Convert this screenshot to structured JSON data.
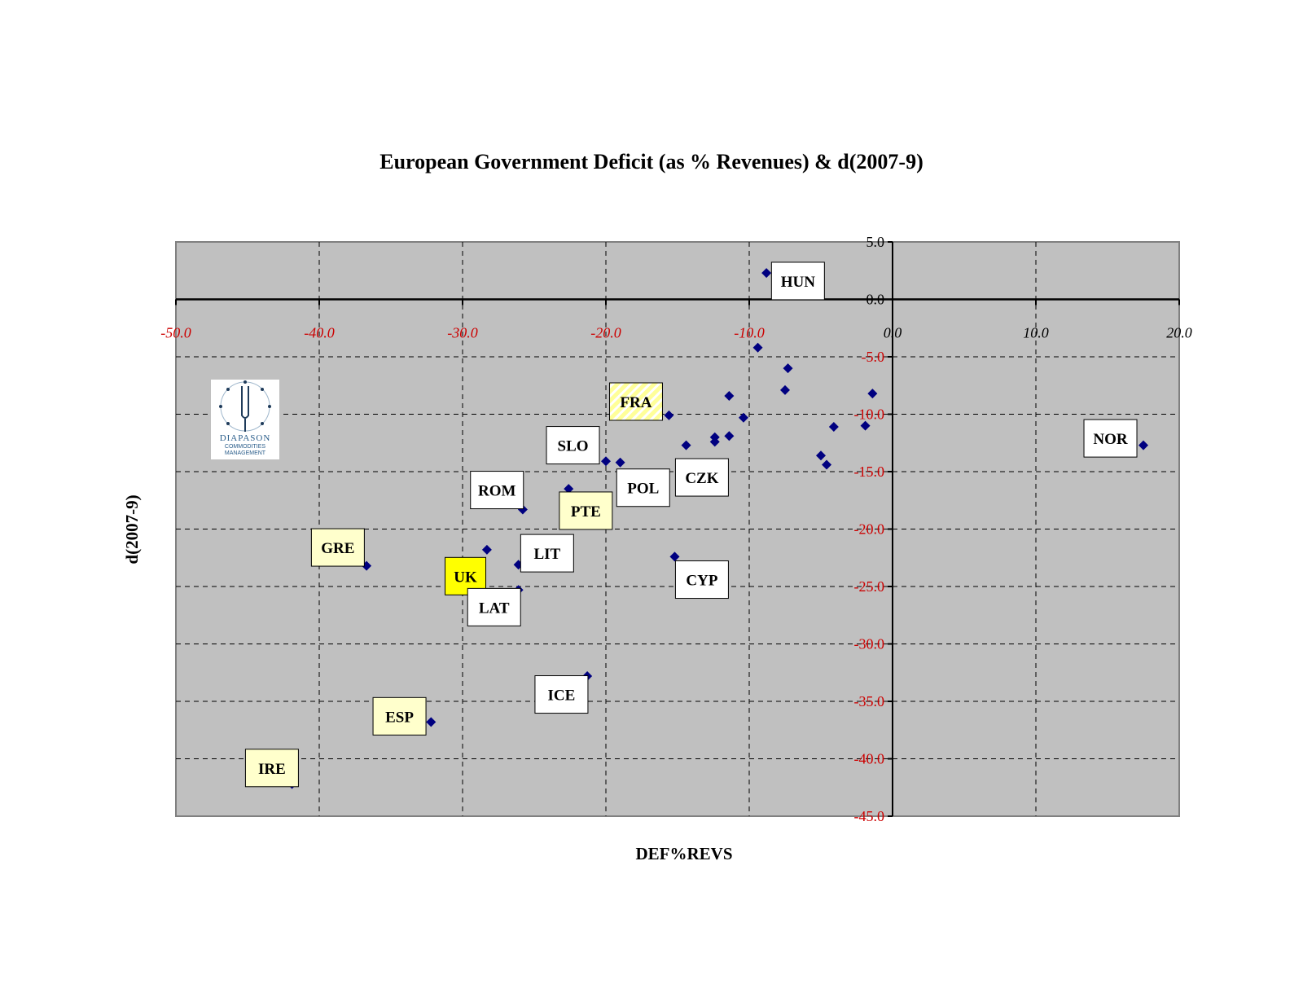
{
  "title": "European Government Deficit (as % Revenues) & d(2007-9)",
  "logo": {
    "name": "DIAPASON",
    "subtitle": "COMMODITIES MANAGEMENT"
  },
  "colors": {
    "plot_bg": "#c0c0c0",
    "point": "#000080",
    "neg_label": "#cc0000",
    "pos_label": "#000000",
    "highlight_yellow": "#ffff00",
    "pale_yellow": "#ffffcc"
  },
  "chart_data": {
    "type": "scatter",
    "xlabel": "DEF%REVS",
    "ylabel": "d(2007-9)",
    "xlim": [
      -50,
      20
    ],
    "ylim": [
      -45,
      5
    ],
    "x_ticks": [
      "-50.0",
      "-40.0",
      "-30.0",
      "-20.0",
      "-10.0",
      "0.0",
      "10.0",
      "20.0"
    ],
    "y_ticks": [
      "5.0",
      "0.0",
      "-5.0",
      "-10.0",
      "-15.0",
      "-20.0",
      "-25.0",
      "-30.0",
      "-35.0",
      "-40.0",
      "-45.0"
    ],
    "grid": true,
    "points": [
      {
        "x": -8.8,
        "y": 2.3
      },
      {
        "x": -9.4,
        "y": -4.2
      },
      {
        "x": -7.3,
        "y": -6.0
      },
      {
        "x": -7.5,
        "y": -7.9
      },
      {
        "x": -1.4,
        "y": -8.2
      },
      {
        "x": -11.4,
        "y": -8.4
      },
      {
        "x": -10.4,
        "y": -10.3
      },
      {
        "x": -15.6,
        "y": -10.1
      },
      {
        "x": -4.1,
        "y": -11.1
      },
      {
        "x": -1.9,
        "y": -11.0
      },
      {
        "x": -11.4,
        "y": -11.9
      },
      {
        "x": -12.4,
        "y": -12.0
      },
      {
        "x": -12.4,
        "y": -12.4
      },
      {
        "x": -14.4,
        "y": -12.7
      },
      {
        "x": -5.0,
        "y": -13.6
      },
      {
        "x": -4.6,
        "y": -14.4
      },
      {
        "x": -20.0,
        "y": -14.1
      },
      {
        "x": -19.0,
        "y": -14.2
      },
      {
        "x": -22.6,
        "y": -16.5
      },
      {
        "x": -25.8,
        "y": -18.3
      },
      {
        "x": -28.3,
        "y": -21.8
      },
      {
        "x": -15.2,
        "y": -22.4
      },
      {
        "x": -36.7,
        "y": -23.2
      },
      {
        "x": -26.1,
        "y": -23.1
      },
      {
        "x": -26.1,
        "y": -25.3
      },
      {
        "x": -21.3,
        "y": -32.8
      },
      {
        "x": -32.2,
        "y": -36.8
      },
      {
        "x": -41.9,
        "y": -42.2
      },
      {
        "x": 17.5,
        "y": -12.7
      }
    ],
    "annotations": [
      {
        "text": "HUN",
        "x": -6.6,
        "y": 1.6,
        "style": "white"
      },
      {
        "text": "FRA",
        "x": -17.9,
        "y": -8.9,
        "style": "hatched"
      },
      {
        "text": "SLO",
        "x": -22.3,
        "y": -12.7,
        "style": "white"
      },
      {
        "text": "NOR",
        "x": 15.2,
        "y": -12.1,
        "style": "white"
      },
      {
        "text": "CZK",
        "x": -13.3,
        "y": -15.5,
        "style": "white"
      },
      {
        "text": "POL",
        "x": -17.4,
        "y": -16.4,
        "style": "white"
      },
      {
        "text": "ROM",
        "x": -27.6,
        "y": -16.6,
        "style": "white"
      },
      {
        "text": "PTE",
        "x": -21.4,
        "y": -18.4,
        "style": "pale"
      },
      {
        "text": "GRE",
        "x": -38.7,
        "y": -21.6,
        "style": "pale"
      },
      {
        "text": "LIT",
        "x": -24.1,
        "y": -22.1,
        "style": "white"
      },
      {
        "text": "UK",
        "x": -29.8,
        "y": -24.1,
        "style": "yellow"
      },
      {
        "text": "CYP",
        "x": -13.3,
        "y": -24.4,
        "style": "white"
      },
      {
        "text": "LAT",
        "x": -27.8,
        "y": -26.8,
        "style": "white"
      },
      {
        "text": "ICE",
        "x": -23.1,
        "y": -34.4,
        "style": "white"
      },
      {
        "text": "ESP",
        "x": -34.4,
        "y": -36.3,
        "style": "pale"
      },
      {
        "text": "IRE",
        "x": -43.3,
        "y": -40.8,
        "style": "pale"
      }
    ]
  }
}
